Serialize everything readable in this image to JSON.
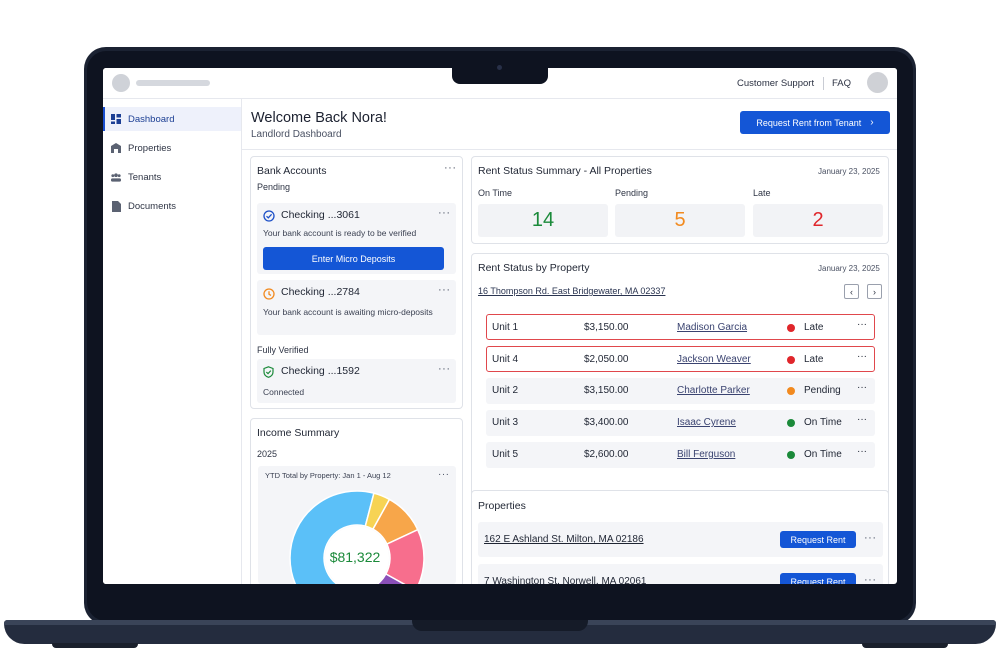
{
  "topbar": {
    "customer_support": "Customer Support",
    "faq": "FAQ"
  },
  "sidebar": {
    "items": [
      {
        "label": "Dashboard",
        "icon": "dashboard-icon"
      },
      {
        "label": "Properties",
        "icon": "building-icon"
      },
      {
        "label": "Tenants",
        "icon": "people-icon"
      },
      {
        "label": "Documents",
        "icon": "document-icon"
      }
    ]
  },
  "header": {
    "welcome": "Welcome Back Nora!",
    "subtitle": "Landlord Dashboard",
    "request_button": "Request Rent from Tenant"
  },
  "bank": {
    "title": "Bank Accounts",
    "pending_label": "Pending",
    "verified_label": "Fully Verified",
    "accounts": [
      {
        "name": "Checking ...3061",
        "desc": "Your bank account is ready to be verified",
        "action": "Enter Micro Deposits",
        "icon": "check-badge-icon"
      },
      {
        "name": "Checking ...2784",
        "desc": "Your bank account is awaiting micro-deposits",
        "icon": "clock-icon"
      },
      {
        "name": "Checking ...1592",
        "desc": "Connected",
        "icon": "shield-check-icon"
      }
    ]
  },
  "income": {
    "title": "Income Summary",
    "year": "2025",
    "chart_title": "YTD Total by Property: Jan 1 - Aug 12",
    "total": "$81,322"
  },
  "rent_summary": {
    "title": "Rent Status Summary - All Properties",
    "date": "January 23, 2025",
    "on_time_label": "On Time",
    "on_time": "14",
    "pending_label": "Pending",
    "pending": "5",
    "late_label": "Late",
    "late": "2"
  },
  "rent_by_property": {
    "title": "Rent Status by Property",
    "date": "January 23, 2025",
    "property": "16 Thompson Rd. East Bridgewater, MA 02337",
    "rows": [
      {
        "unit": "Unit 1",
        "amount": "$3,150.00",
        "tenant": "Madison Garcia",
        "status": "Late"
      },
      {
        "unit": "Unit 4",
        "amount": "$2,050.00",
        "tenant": "Jackson Weaver",
        "status": "Late"
      },
      {
        "unit": "Unit 2",
        "amount": "$3,150.00",
        "tenant": "Charlotte Parker",
        "status": "Pending"
      },
      {
        "unit": "Unit 3",
        "amount": "$3,400.00",
        "tenant": "Isaac Cyrene",
        "status": "On Time"
      },
      {
        "unit": "Unit 5",
        "amount": "$2,600.00",
        "tenant": "Bill Ferguson",
        "status": "On Time"
      }
    ]
  },
  "properties": {
    "title": "Properties",
    "items": [
      {
        "address": "162 E Ashland St. Milton, MA 02186",
        "button": "Request Rent"
      },
      {
        "address": "7 Washington St. Norwell, MA 02061",
        "button": "Request Rent"
      }
    ]
  },
  "colors": {
    "primary": "#1456d6",
    "on_time": "#1b8a3a",
    "pending": "#f28a1f",
    "late": "#e0262b",
    "donut": [
      "#5bc0f8",
      "#f7d354",
      "#f7a64a",
      "#f76e8d",
      "#8a4fb8"
    ]
  },
  "chart_data": {
    "type": "pie",
    "title": "YTD Total by Property: Jan 1 - Aug 12",
    "center_label": "$81,322",
    "values": [
      58,
      4,
      10,
      15,
      13
    ]
  }
}
